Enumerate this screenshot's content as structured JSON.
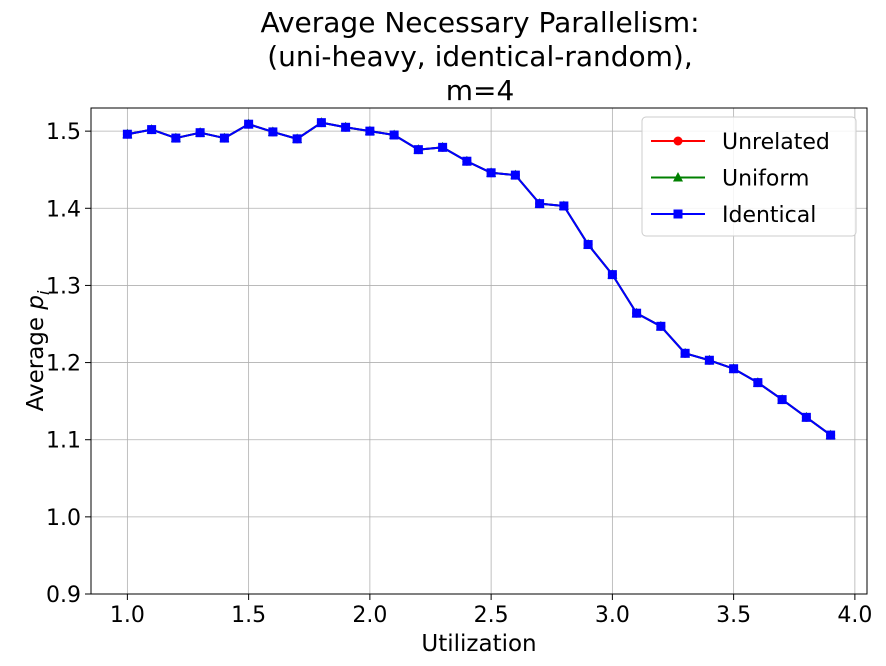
{
  "chart_data": {
    "type": "line",
    "title": [
      "Average Necessary Parallelism:",
      "(uni-heavy, identical-random),",
      "m=4"
    ],
    "xlabel": "Utilization",
    "ylabel": "Average",
    "ylabel_math": "p",
    "ylabel_sub": "i",
    "xlim": [
      0.85,
      4.05
    ],
    "ylim": [
      0.9,
      1.53
    ],
    "xticks": [
      1.0,
      1.5,
      2.0,
      2.5,
      3.0,
      3.5,
      4.0
    ],
    "xtick_labels": [
      "1.0",
      "1.5",
      "2.0",
      "2.5",
      "3.0",
      "3.5",
      "4.0"
    ],
    "yticks": [
      0.9,
      1.0,
      1.1,
      1.2,
      1.3,
      1.4,
      1.5
    ],
    "ytick_labels": [
      "0.9",
      "1.0",
      "1.1",
      "1.2",
      "1.3",
      "1.4",
      "1.5"
    ],
    "grid": true,
    "legend_position": "top-right",
    "x": [
      1.0,
      1.1,
      1.2,
      1.3,
      1.4,
      1.5,
      1.6,
      1.7,
      1.8,
      1.9,
      2.0,
      2.1,
      2.2,
      2.3,
      2.4,
      2.5,
      2.6,
      2.7,
      2.8,
      2.9,
      3.0,
      3.1,
      3.2,
      3.3,
      3.4,
      3.5,
      3.6,
      3.7,
      3.8,
      3.9
    ],
    "series": [
      {
        "name": "Unrelated",
        "color": "#ff0000",
        "marker": "circle",
        "values": [
          1.496,
          1.502,
          1.491,
          1.498,
          1.491,
          1.509,
          1.499,
          1.49,
          1.511,
          1.505,
          1.5,
          1.495,
          1.476,
          1.479,
          1.461,
          1.446,
          1.443,
          1.406,
          1.403,
          1.353,
          1.314,
          1.264,
          1.247,
          1.212,
          1.203,
          1.192,
          1.174,
          1.152,
          1.129,
          1.106
        ]
      },
      {
        "name": "Uniform",
        "color": "#008000",
        "marker": "triangle",
        "values": [
          1.496,
          1.502,
          1.491,
          1.498,
          1.491,
          1.509,
          1.499,
          1.49,
          1.511,
          1.505,
          1.5,
          1.495,
          1.476,
          1.479,
          1.461,
          1.446,
          1.443,
          1.406,
          1.403,
          1.353,
          1.314,
          1.264,
          1.247,
          1.212,
          1.203,
          1.192,
          1.174,
          1.152,
          1.129,
          1.106
        ]
      },
      {
        "name": "Identical",
        "color": "#0000ff",
        "marker": "square",
        "values": [
          1.496,
          1.502,
          1.491,
          1.498,
          1.491,
          1.509,
          1.499,
          1.49,
          1.511,
          1.505,
          1.5,
          1.495,
          1.476,
          1.479,
          1.461,
          1.446,
          1.443,
          1.406,
          1.403,
          1.353,
          1.314,
          1.264,
          1.247,
          1.212,
          1.203,
          1.192,
          1.174,
          1.152,
          1.129,
          1.106
        ]
      }
    ]
  }
}
